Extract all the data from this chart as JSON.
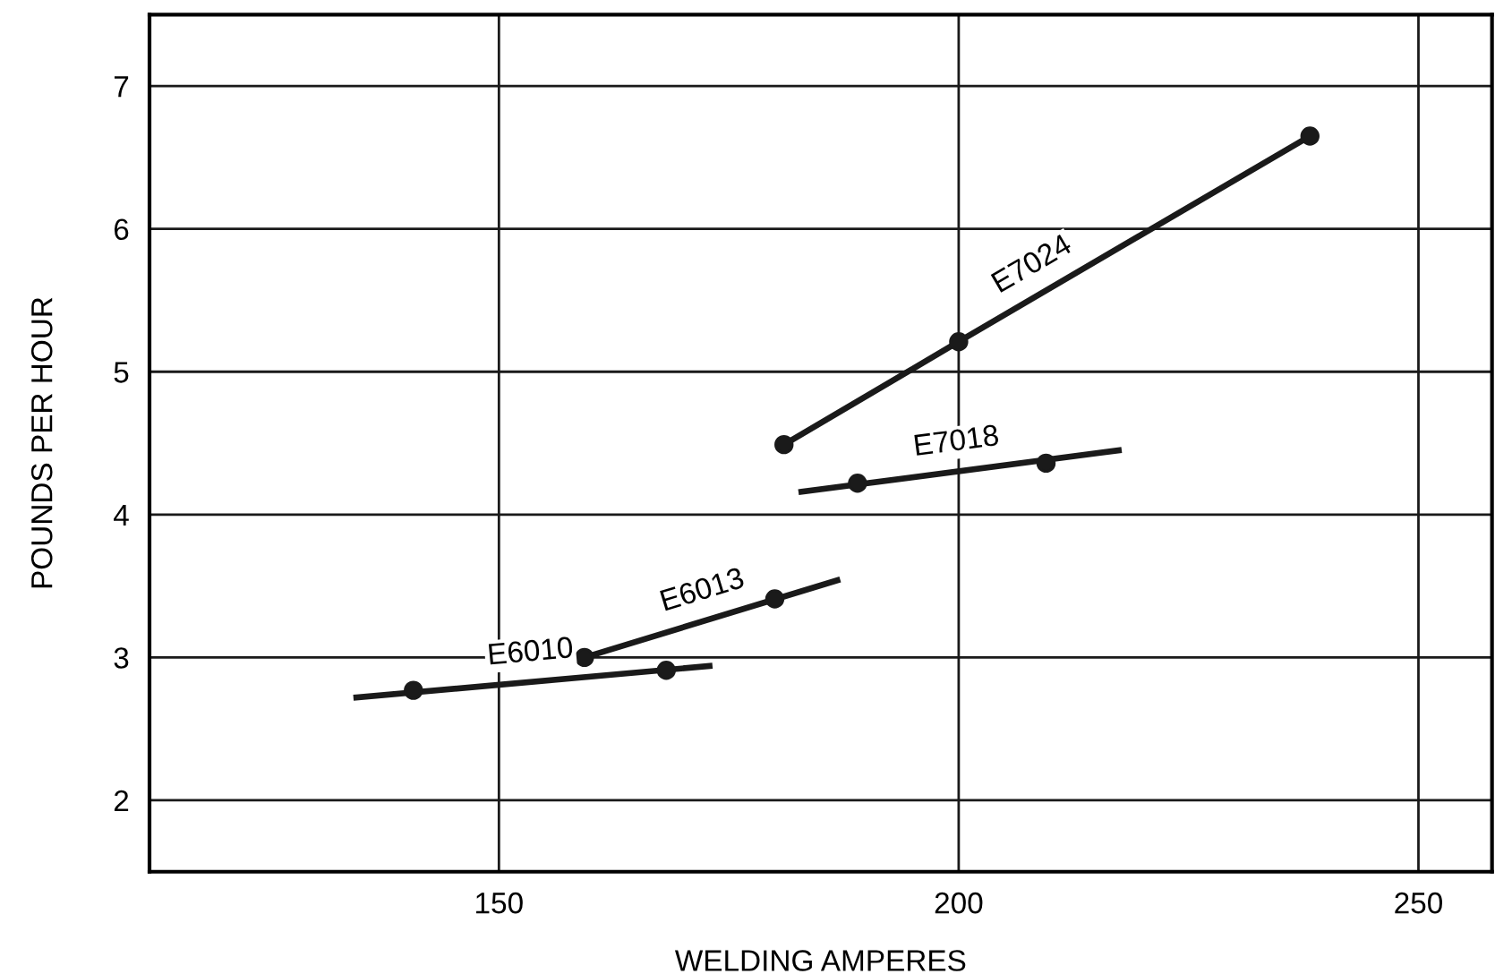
{
  "chart_data": {
    "type": "line",
    "xlabel": "WELDING AMPERES",
    "ylabel": "POUNDS PER HOUR",
    "xlim": [
      112,
      258
    ],
    "xticks": [
      150,
      200,
      250
    ],
    "ylim": [
      1.5,
      7.5
    ],
    "yticks": [
      2,
      3,
      4,
      5,
      6,
      7
    ],
    "grid": true,
    "line_style": "solid",
    "series": [
      {
        "name": "E6010",
        "color": "#1a1a1a",
        "x": [
          134.5,
          172.9
        ],
        "values": [
          2.72,
          2.94
        ]
      },
      {
        "type": "scatter",
        "marker": "circle",
        "color": "#1a1a1a",
        "x": [
          140.7,
          168.2
        ],
        "values": [
          2.77,
          2.91
        ]
      },
      {
        "name": "E6013",
        "color": "#1a1a1a",
        "x": [
          159.3,
          186.8
        ],
        "values": [
          3.0,
          3.54
        ]
      },
      {
        "type": "scatter",
        "marker": "circle",
        "color": "#1a1a1a",
        "x": [
          159.3,
          180.0
        ],
        "values": [
          3.0,
          3.41
        ]
      },
      {
        "name": "E7018",
        "color": "#1a1a1a",
        "x": [
          182.9,
          217.4
        ],
        "values": [
          4.16,
          4.45
        ]
      },
      {
        "type": "scatter",
        "marker": "circle",
        "color": "#1a1a1a",
        "x": [
          189.0,
          209.5
        ],
        "values": [
          4.22,
          4.36
        ]
      },
      {
        "name": "E7024",
        "color": "#1a1a1a",
        "x": [
          181.0,
          200.0,
          238.2
        ],
        "values": [
          4.49,
          5.21,
          6.65
        ]
      },
      {
        "type": "scatter",
        "marker": "circle",
        "color": "#1a1a1a",
        "x": [
          181.0,
          200.0,
          238.2
        ],
        "values": [
          4.49,
          5.21,
          6.65
        ]
      }
    ]
  }
}
